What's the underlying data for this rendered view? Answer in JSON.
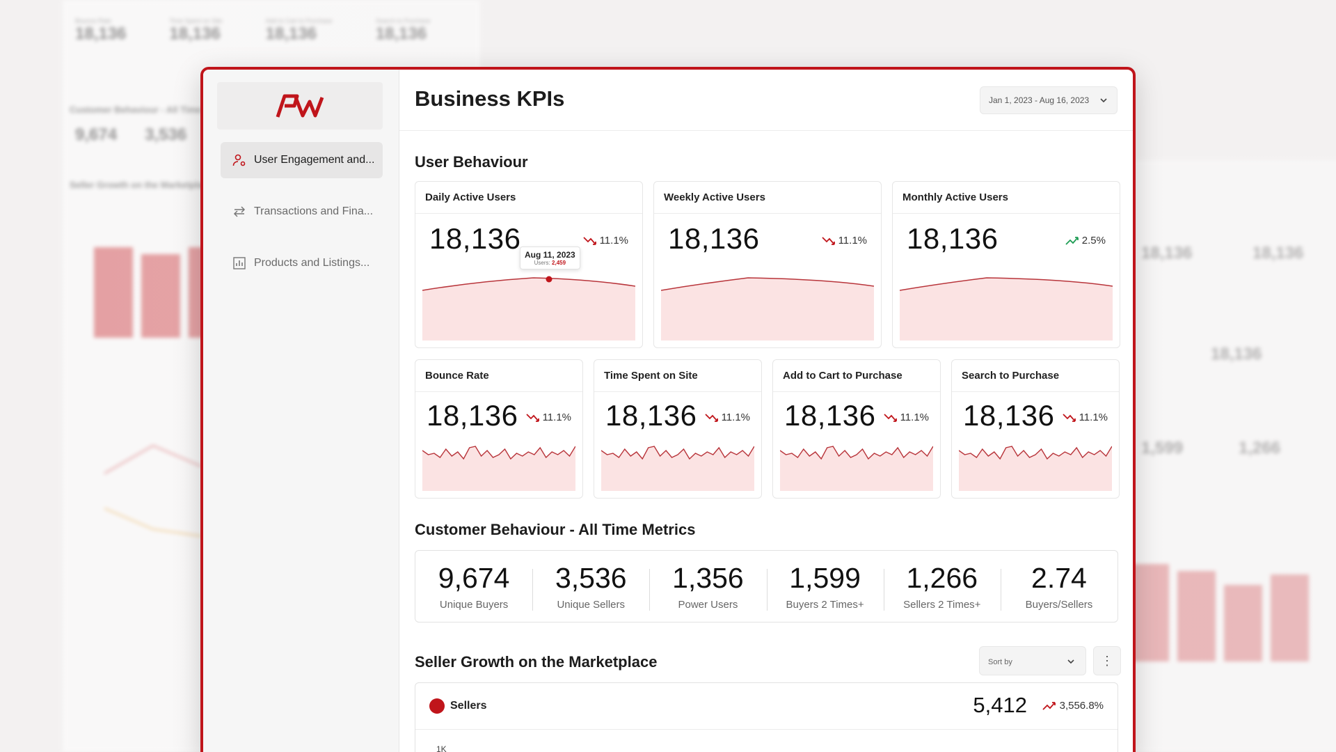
{
  "app": {
    "title": "Business KPIs",
    "date_range": "Jan 1, 2023 - Aug 16, 2023"
  },
  "sidebar": {
    "logo_text": "PW",
    "items": [
      {
        "label": "User Engagement and...",
        "icon": "user-settings-icon",
        "active": true
      },
      {
        "label": "Transactions and Fina...",
        "icon": "transfer-arrows-icon",
        "active": false
      },
      {
        "label": "Products and Listings...",
        "icon": "bar-chart-icon",
        "active": false
      }
    ]
  },
  "user_behaviour": {
    "title": "User Behaviour",
    "top_cards": [
      {
        "title": "Daily Active Users",
        "value": "18,136",
        "change": "11.1%",
        "trend": "down"
      },
      {
        "title": "Weekly Active Users",
        "value": "18,136",
        "change": "11.1%",
        "trend": "down"
      },
      {
        "title": "Monthly Active Users",
        "value": "18,136",
        "change": "2.5%",
        "trend": "up"
      }
    ],
    "tooltip": {
      "date": "Aug 11, 2023",
      "label": "Users:",
      "value": "2,459"
    },
    "bottom_cards": [
      {
        "title": "Bounce Rate",
        "value": "18,136",
        "change": "11.1%",
        "trend": "down"
      },
      {
        "title": "Time Spent on Site",
        "value": "18,136",
        "change": "11.1%",
        "trend": "down"
      },
      {
        "title": "Add to Cart to Purchase",
        "value": "18,136",
        "change": "11.1%",
        "trend": "down"
      },
      {
        "title": "Search to Purchase",
        "value": "18,136",
        "change": "11.1%",
        "trend": "down"
      }
    ]
  },
  "customer_behaviour": {
    "title": "Customer Behaviour - All Time Metrics",
    "metrics": [
      {
        "value": "9,674",
        "label": "Unique Buyers"
      },
      {
        "value": "3,536",
        "label": "Unique Sellers"
      },
      {
        "value": "1,356",
        "label": "Power Users"
      },
      {
        "value": "1,599",
        "label": "Buyers 2 Times+"
      },
      {
        "value": "1,266",
        "label": "Sellers 2 Times+"
      },
      {
        "value": "2.74",
        "label": "Buyers/Sellers"
      }
    ]
  },
  "seller_growth": {
    "title": "Seller Growth on the Marketplace",
    "sort_placeholder": "Sort by",
    "more_label": "⋮",
    "legend": "Sellers",
    "total": "5,412",
    "change": "3,556.8%",
    "axis_top": "1K"
  },
  "colors": {
    "accent": "#c0151b",
    "chart_fill": "#fbe3e3",
    "chart_line": "#b8343a",
    "up": "#1f9d55"
  }
}
